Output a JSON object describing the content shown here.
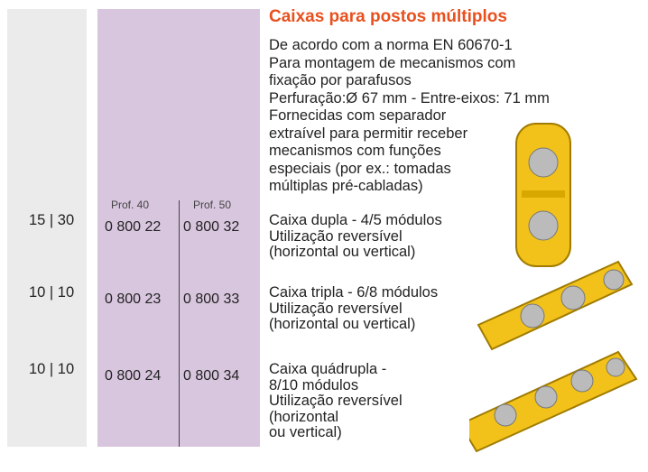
{
  "header": {
    "title": "Caixas para postos múltiplos"
  },
  "description": [
    "De acordo com a norma EN 60670-1",
    "Para montagem de mecanismos com",
    "fixação por parafusos",
    "Perfuração:Ø 67 mm - Entre-eixos: 71 mm",
    "Fornecidas com separador",
    "extraível para permitir receber",
    "mecanismos com funções",
    "especiais (por ex.: tomadas",
    "múltiplas pré-cabladas)"
  ],
  "columns": [
    "Prof. 40",
    "Prof. 50"
  ],
  "rows": [
    {
      "qty": "15 | 30",
      "ref40": "0 800 22",
      "ref50": "0 800 32",
      "lines": [
        "Caixa dupla - 4/5 módulos",
        "Utilização reversível",
        "(horizontal ou vertical)"
      ]
    },
    {
      "qty": "10 | 10",
      "ref40": "0 800 23",
      "ref50": "0 800 33",
      "lines": [
        "Caixa tripla - 6/8 módulos",
        "Utilização reversível",
        "(horizontal ou vertical)"
      ]
    },
    {
      "qty": "10 | 10",
      "ref40": "0 800 24",
      "ref50": "0 800 34",
      "lines": [
        "Caixa quádrupla -",
        "8/10 módulos",
        "Utilização reversível",
        "(horizontal",
        "ou vertical)"
      ]
    }
  ]
}
